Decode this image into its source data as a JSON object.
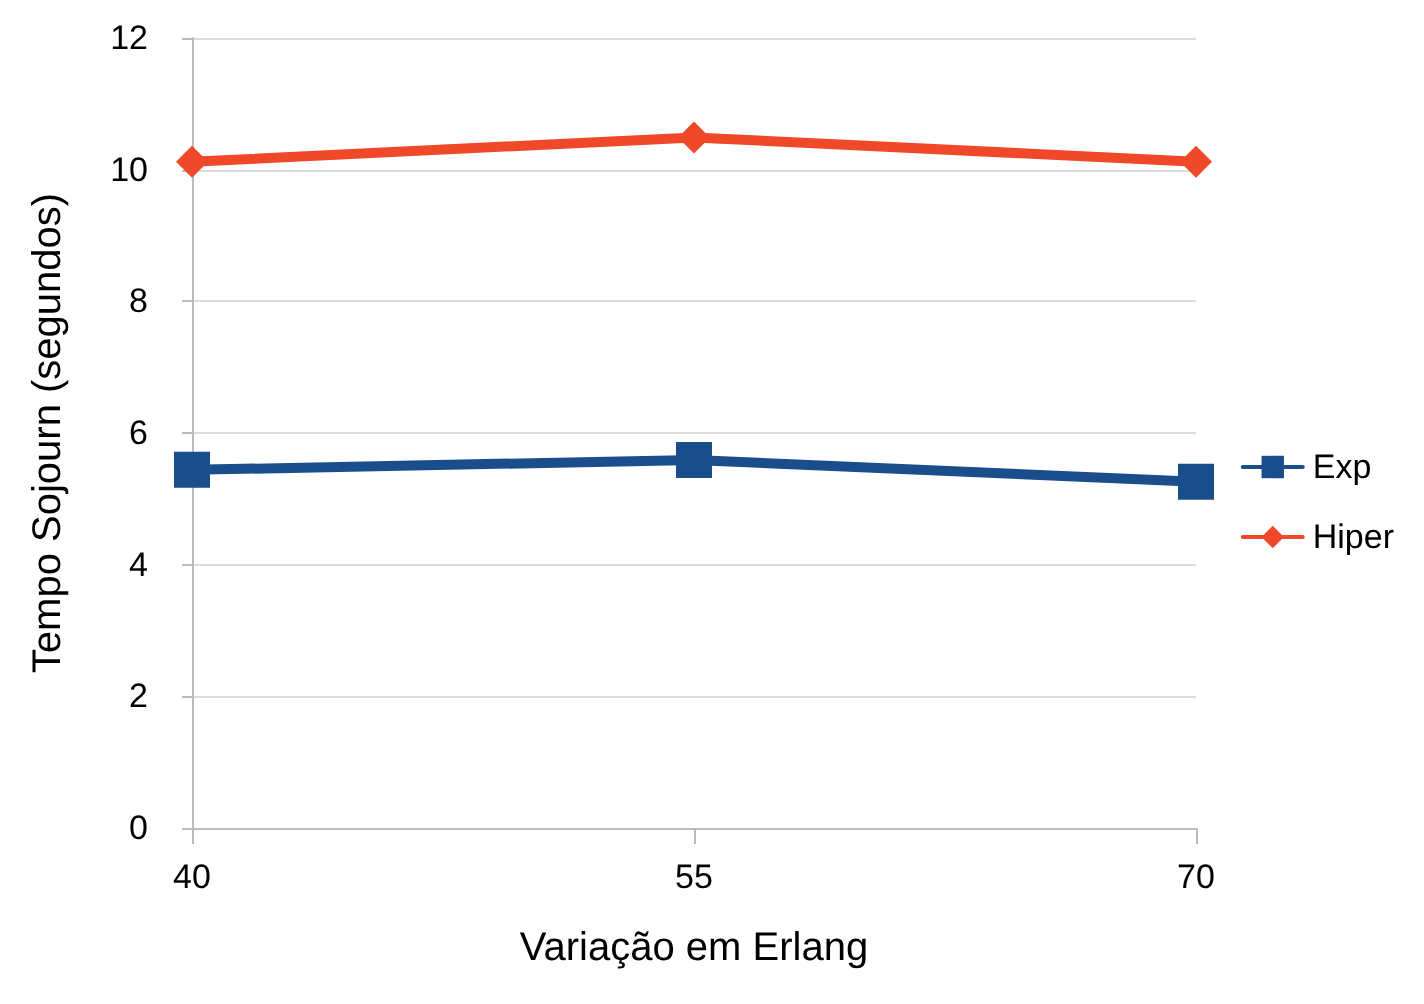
{
  "chart_data": {
    "type": "line",
    "xlabel": "Variação em Erlang",
    "ylabel": "Tempo Sojourn (segundos)",
    "categories": [
      "40",
      "55",
      "70"
    ],
    "series": [
      {
        "name": "Exp",
        "color": "#194d8c",
        "marker": "square",
        "values": [
          5.44,
          5.59,
          5.26
        ]
      },
      {
        "name": "Hiper",
        "color": "#f0492a",
        "marker": "diamond",
        "values": [
          10.12,
          10.49,
          10.12
        ]
      }
    ],
    "ylim": [
      0,
      12
    ],
    "yticks": [
      0,
      2,
      4,
      6,
      8,
      10,
      12
    ],
    "grid": "y",
    "legend": "right",
    "line_style": "solid"
  }
}
